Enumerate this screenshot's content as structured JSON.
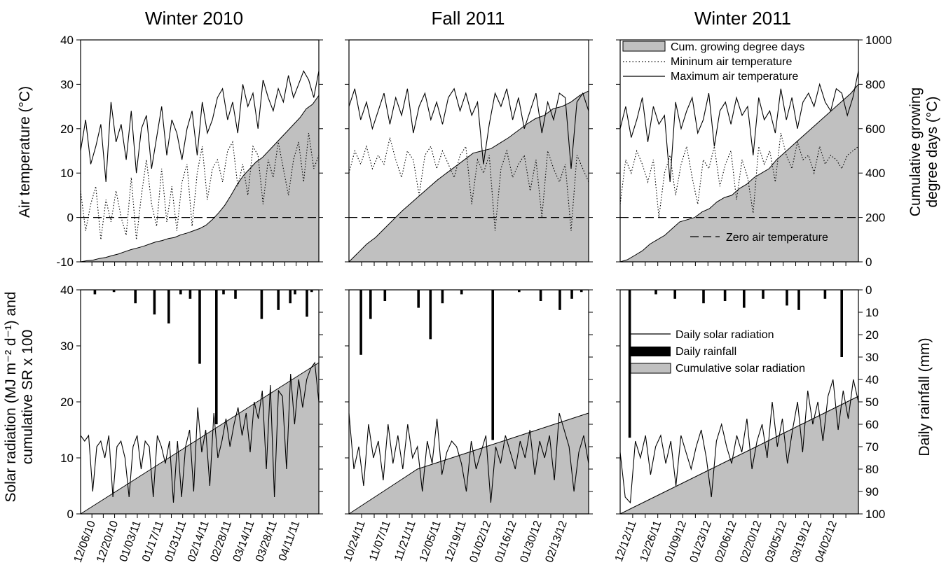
{
  "chart_data": {
    "type": "line",
    "panel_titles": [
      "Winter 2010",
      "Fall 2011",
      "Winter 2011"
    ],
    "top": {
      "ylabel_left": "Air temperature (°C)",
      "ylabel_right": [
        "Cumulative growing",
        "degree days (°C)"
      ],
      "ylim_left": [
        -10,
        40
      ],
      "yticks_left": [
        "40",
        "30",
        "20",
        "10",
        "0",
        "-10"
      ],
      "ylim_right": [
        0,
        1000
      ],
      "yticks_right": [
        "1000",
        "800",
        "600",
        "400",
        "200",
        "0"
      ],
      "reference_line": {
        "y": 0,
        "label": "Zero air temperature"
      },
      "legend": {
        "placement": "top-right of third panel",
        "entries": [
          "Cum. growing degree days",
          "Mininum air temperature",
          "Maximum air temperature"
        ]
      },
      "panels": [
        {
          "name": "Winter 2010",
          "max_temp": [
            15,
            22,
            12,
            16,
            21,
            8,
            26,
            17,
            21,
            13,
            24,
            10,
            20,
            23,
            11,
            18,
            25,
            14,
            22,
            19,
            13,
            20,
            24,
            14,
            26,
            19,
            22,
            27,
            29,
            22,
            26,
            19,
            30,
            25,
            28,
            20,
            31,
            27,
            24,
            29,
            26,
            32,
            27,
            30,
            33,
            31,
            27,
            33
          ],
          "min_temp": [
            6,
            -3,
            3,
            7,
            -5,
            4,
            -1,
            6,
            0,
            -4,
            9,
            -5,
            5,
            13,
            3,
            -2,
            11,
            -1,
            7,
            -3,
            8,
            12,
            -2,
            10,
            16,
            4,
            11,
            13,
            8,
            15,
            17,
            7,
            12,
            5,
            16,
            14,
            3,
            13,
            9,
            17,
            11,
            5,
            13,
            17,
            8,
            19,
            11,
            14
          ],
          "cum_gdd": [
            0,
            5,
            8,
            15,
            20,
            28,
            35,
            45,
            55,
            62,
            70,
            80,
            90,
            96,
            105,
            110,
            122,
            130,
            140,
            150,
            165,
            190,
            220,
            255,
            300,
            350,
            390,
            420,
            450,
            470,
            500,
            530,
            560,
            590,
            620,
            650,
            690,
            710,
            750
          ],
          "x_tick_labels": [
            "12/06/10",
            "12/20/10",
            "01/03/11",
            "01/17/11",
            "01/31/11",
            "02/14/11",
            "02/28/11",
            "03/14/11",
            "03/28/11",
            "04/11/11"
          ]
        },
        {
          "name": "Fall 2011",
          "max_temp": [
            25,
            29,
            22,
            26,
            20,
            24,
            28,
            21,
            27,
            23,
            29,
            19,
            25,
            28,
            22,
            26,
            21,
            27,
            29,
            24,
            28,
            23,
            26,
            12,
            21,
            28,
            25,
            29,
            22,
            27,
            20,
            24,
            28,
            19,
            26,
            22,
            28,
            27,
            11,
            26,
            28,
            24
          ],
          "min_temp": [
            10,
            15,
            12,
            16,
            11,
            14,
            12,
            18,
            13,
            9,
            15,
            13,
            5,
            14,
            16,
            11,
            15,
            12,
            9,
            14,
            16,
            3,
            13,
            10,
            14,
            -3,
            11,
            15,
            9,
            12,
            14,
            6,
            13,
            0,
            15,
            11,
            8,
            12,
            -3,
            14,
            11,
            8
          ],
          "cum_gdd": [
            0,
            40,
            80,
            110,
            150,
            190,
            230,
            265,
            300,
            335,
            370,
            400,
            430,
            460,
            490,
            500,
            510,
            535,
            560,
            590,
            620,
            645,
            660,
            690,
            700,
            720,
            750,
            770
          ],
          "x_tick_labels": [
            "10/24/11",
            "11/07/11",
            "11/21/11",
            "12/05/11",
            "12/19/11",
            "01/02/12",
            "01/16/12",
            "01/30/12",
            "02/13/12"
          ]
        },
        {
          "name": "Winter 2011",
          "max_temp": [
            20,
            25,
            18,
            22,
            27,
            17,
            25,
            21,
            23,
            8,
            26,
            20,
            24,
            27,
            19,
            22,
            28,
            16,
            24,
            26,
            21,
            27,
            23,
            25,
            14,
            27,
            22,
            24,
            19,
            29,
            22,
            27,
            20,
            26,
            28,
            25,
            30,
            26,
            24,
            29,
            28,
            23,
            27,
            33
          ],
          "min_temp": [
            3,
            13,
            10,
            15,
            12,
            8,
            13,
            0,
            10,
            14,
            5,
            12,
            16,
            9,
            3,
            13,
            11,
            16,
            7,
            12,
            15,
            4,
            13,
            9,
            1,
            16,
            12,
            15,
            8,
            19,
            14,
            11,
            17,
            13,
            14,
            10,
            16,
            12,
            14,
            13,
            11,
            14,
            15,
            16
          ],
          "cum_gdd": [
            0,
            10,
            30,
            50,
            80,
            100,
            120,
            150,
            180,
            190,
            200,
            225,
            240,
            270,
            290,
            300,
            330,
            350,
            380,
            400,
            420,
            460,
            490,
            520,
            550,
            580,
            610,
            640,
            670,
            700,
            730,
            760,
            800
          ],
          "x_tick_labels": [
            "12/12/11",
            "12/26/11",
            "01/09/12",
            "01/23/12",
            "02/06/12",
            "02/20/12",
            "03/05/12",
            "03/19/12",
            "04/02/12"
          ]
        }
      ]
    },
    "bottom": {
      "ylabel_left": [
        "Solar radiation (MJ m⁻² d⁻¹) and",
        "cumulative SR x 100"
      ],
      "ylabel_right": "Daily rainfall (mm)",
      "ylim_left": [
        0,
        40
      ],
      "yticks_left": [
        "40",
        "30",
        "20",
        "10",
        "0"
      ],
      "ylim_right_inverted": [
        0,
        100
      ],
      "yticks_right": [
        "0",
        "10",
        "20",
        "30",
        "40",
        "50",
        "60",
        "70",
        "80",
        "90",
        "100"
      ],
      "legend": {
        "placement": "right side of third panel",
        "entries": [
          "Daily solar radiation",
          "Daily rainfall",
          "Cumulative solar radiation"
        ]
      },
      "panels": [
        {
          "name": "Winter 2010",
          "solar": [
            14,
            13,
            14,
            4,
            12,
            13,
            10,
            14,
            3,
            12,
            13,
            10,
            3,
            12,
            14,
            8,
            13,
            12,
            3,
            14,
            12,
            9,
            13,
            2,
            13,
            3,
            12,
            15,
            4,
            19,
            11,
            15,
            5,
            18,
            10,
            13,
            17,
            12,
            16,
            19,
            14,
            18,
            11,
            20,
            17,
            22,
            8,
            23,
            3,
            22,
            21,
            8,
            25,
            16,
            24,
            19,
            24,
            26,
            27,
            20
          ],
          "cum_solar": [
            0,
            1,
            2,
            3,
            4,
            5,
            6,
            7,
            8,
            9,
            10,
            11,
            12,
            13,
            14,
            15,
            16,
            17,
            18,
            19,
            20,
            21,
            22,
            23,
            24,
            25,
            26,
            27
          ],
          "rainfall": [
            [
              0.06,
              2
            ],
            [
              0.14,
              1
            ],
            [
              0.23,
              6
            ],
            [
              0.31,
              11
            ],
            [
              0.37,
              15
            ],
            [
              0.42,
              2
            ],
            [
              0.46,
              4
            ],
            [
              0.5,
              33
            ],
            [
              0.57,
              60
            ],
            [
              0.6,
              2
            ],
            [
              0.65,
              4
            ],
            [
              0.76,
              13
            ],
            [
              0.83,
              9
            ],
            [
              0.88,
              6
            ],
            [
              0.9,
              2
            ],
            [
              0.95,
              12
            ],
            [
              0.97,
              1
            ]
          ],
          "x_tick_labels": [
            "12/06/10",
            "12/20/10",
            "01/03/11",
            "01/17/11",
            "01/31/11",
            "02/14/11",
            "02/28/11",
            "03/14/11",
            "03/28/11",
            "04/11/11"
          ]
        },
        {
          "name": "Fall 2011",
          "solar": [
            18,
            8,
            12,
            5,
            16,
            10,
            13,
            6,
            16,
            9,
            14,
            8,
            16,
            10,
            12,
            4,
            13,
            9,
            17,
            7,
            11,
            13,
            12,
            9,
            4,
            13,
            8,
            11,
            14,
            2,
            12,
            9,
            14,
            11,
            8,
            13,
            10,
            15,
            7,
            13,
            10,
            14,
            6,
            18,
            15,
            12,
            4,
            11,
            14,
            9
          ],
          "cum_solar": [
            0,
            2,
            4,
            6,
            8,
            9,
            10,
            11,
            12,
            13,
            14,
            15,
            16,
            17,
            18
          ],
          "rainfall": [
            [
              0.05,
              29
            ],
            [
              0.09,
              13
            ],
            [
              0.15,
              5
            ],
            [
              0.29,
              8
            ],
            [
              0.34,
              22
            ],
            [
              0.39,
              6
            ],
            [
              0.47,
              2
            ],
            [
              0.6,
              67
            ],
            [
              0.71,
              1
            ],
            [
              0.8,
              5
            ],
            [
              0.88,
              9
            ],
            [
              0.93,
              4
            ],
            [
              0.97,
              1
            ]
          ],
          "x_tick_labels": [
            "10/24/11",
            "11/07/11",
            "11/21/11",
            "12/05/11",
            "12/19/11",
            "01/02/12",
            "01/16/12",
            "01/30/12",
            "02/13/12"
          ]
        },
        {
          "name": "Winter 2011",
          "solar": [
            11,
            3,
            2,
            13,
            10,
            14,
            7,
            12,
            14,
            9,
            13,
            5,
            14,
            11,
            8,
            12,
            15,
            10,
            3,
            13,
            16,
            12,
            9,
            14,
            11,
            17,
            8,
            13,
            16,
            10,
            20,
            12,
            17,
            9,
            15,
            20,
            11,
            22,
            16,
            20,
            13,
            21,
            24,
            15,
            22,
            17,
            24,
            20
          ],
          "cum_solar": [
            0,
            1,
            2,
            3,
            4,
            5,
            6,
            7,
            8,
            9,
            10,
            11,
            12,
            13,
            14,
            15,
            16,
            17,
            18,
            19,
            20,
            21
          ],
          "rainfall": [
            [
              0.04,
              66
            ],
            [
              0.15,
              2
            ],
            [
              0.23,
              4
            ],
            [
              0.35,
              6
            ],
            [
              0.44,
              5
            ],
            [
              0.52,
              8
            ],
            [
              0.6,
              4
            ],
            [
              0.7,
              7
            ],
            [
              0.75,
              9
            ],
            [
              0.86,
              4
            ],
            [
              0.93,
              30
            ]
          ],
          "x_tick_labels": [
            "12/12/11",
            "12/26/11",
            "01/09/12",
            "01/23/12",
            "02/06/12",
            "02/20/12",
            "03/05/12",
            "03/19/12",
            "04/02/12"
          ]
        }
      ]
    }
  }
}
